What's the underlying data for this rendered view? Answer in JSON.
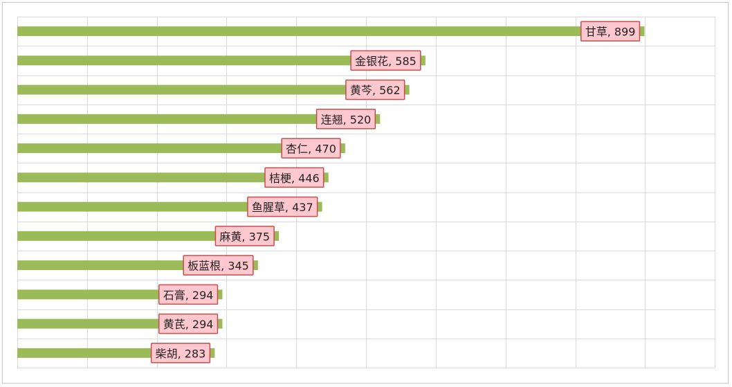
{
  "chart_data": {
    "type": "bar",
    "orientation": "horizontal",
    "categories": [
      "甘草",
      "金银花",
      "黄芩",
      "连翘",
      "杏仁",
      "桔梗",
      "鱼腥草",
      "麻黄",
      "板蓝根",
      "石膏",
      "黄芪",
      "柴胡"
    ],
    "values": [
      899,
      585,
      562,
      520,
      470,
      446,
      437,
      375,
      345,
      294,
      294,
      283
    ],
    "xlim": [
      0,
      1000
    ],
    "x_tick_step": 100,
    "grid": true,
    "title": "",
    "xlabel": "",
    "ylabel": "",
    "data_label_format": "{category}, {value}",
    "colors": {
      "bar": "#9bbb59",
      "label_fill": "#ffc7ce",
      "label_border": "#c0504d",
      "grid": "#d9d9d9"
    }
  }
}
